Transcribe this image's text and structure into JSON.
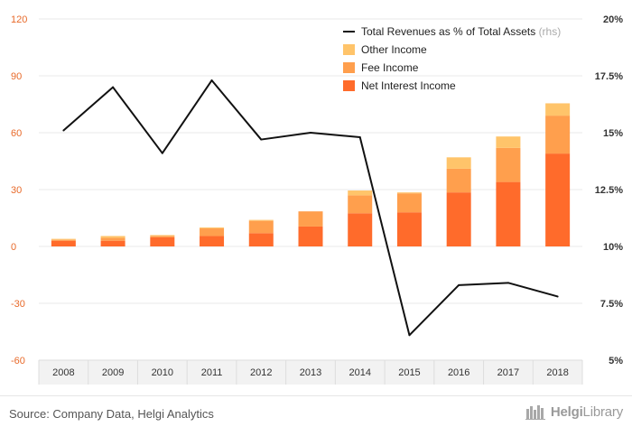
{
  "chart_data": {
    "type": "bar",
    "categories": [
      "2008",
      "2009",
      "2010",
      "2011",
      "2012",
      "2013",
      "2014",
      "2015",
      "2016",
      "2017",
      "2018"
    ],
    "series": [
      {
        "name": "Net Interest Income",
        "color": "#ff6b2b",
        "values": [
          3.0,
          3.0,
          4.8,
          5.5,
          7.0,
          10.5,
          17.5,
          18.0,
          28.5,
          34.0,
          49.0
        ]
      },
      {
        "name": "Fee Income",
        "color": "#ff9f4d",
        "values": [
          0.5,
          1.5,
          0.8,
          4.0,
          6.5,
          8.0,
          9.5,
          10.0,
          12.5,
          18.0,
          20.0
        ]
      },
      {
        "name": "Other Income",
        "color": "#ffc46a",
        "values": [
          0.5,
          1.0,
          0.4,
          0.5,
          0.5,
          0.0,
          2.5,
          0.5,
          6.0,
          6.0,
          6.5
        ]
      }
    ],
    "line_series": {
      "name": "Total Revenues as % of Total Assets",
      "suffix": "(rhs)",
      "values": [
        15.1,
        17.0,
        14.1,
        17.3,
        14.7,
        15.0,
        14.8,
        6.1,
        8.3,
        8.4,
        7.8
      ]
    },
    "left_axis": {
      "min": -60,
      "max": 120,
      "ticks": [
        "120",
        "90",
        "60",
        "30",
        "0",
        "-30",
        "-60"
      ],
      "tick_values": [
        120,
        90,
        60,
        30,
        0,
        -30,
        -60
      ]
    },
    "right_axis": {
      "min": 5,
      "max": 20,
      "ticks": [
        "20%",
        "17.5%",
        "15%",
        "12.5%",
        "10%",
        "7.5%",
        "5%"
      ],
      "tick_values": [
        20,
        17.5,
        15,
        12.5,
        10,
        7.5,
        5
      ]
    },
    "legend_placement": "top-right",
    "grid": true
  },
  "footer": {
    "source": "Source: Company Data, Helgi Analytics",
    "brand_1": "Helgi",
    "brand_2": "Library"
  },
  "colors": {
    "left_tick": "#e86a2a",
    "right_tick": "#333333",
    "line": "#111111",
    "grid": "#e8e8e8",
    "brand": "#9a9a9a"
  }
}
